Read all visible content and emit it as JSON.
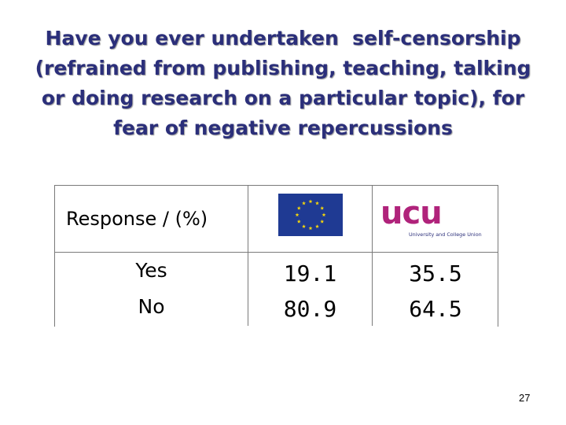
{
  "title": {
    "line1": "Have you ever undertaken  self-censorship",
    "line2": "(refrained from publishing, teaching, talking",
    "line3": "or doing research on a particular topic), for",
    "line4": "fear of negative repercussions"
  },
  "table": {
    "header_label": "Response / (%)",
    "columns": [
      {
        "logo": "eu-flag-icon"
      },
      {
        "logo": "ucu-logo",
        "logo_text": "ucu",
        "logo_subtitle": "University and College Union"
      }
    ],
    "rows": [
      {
        "label": "Yes",
        "eu": "19.1",
        "ucu": "35.5"
      },
      {
        "label": "No",
        "eu": "80.9",
        "ucu": "64.5"
      }
    ]
  },
  "colors": {
    "title": "#2b2f7a",
    "eu_blue": "#1f3a93",
    "eu_star": "#f5d60a",
    "ucu_magenta": "#b0237b",
    "ucu_navy": "#2b2f7a"
  },
  "page_number": "27"
}
